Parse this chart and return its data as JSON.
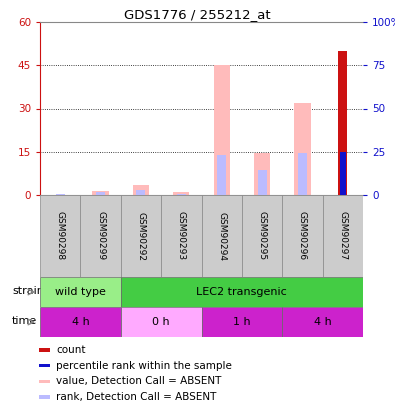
{
  "title": "GDS1776 / 255212_at",
  "samples": [
    "GSM90298",
    "GSM90299",
    "GSM90292",
    "GSM90293",
    "GSM90294",
    "GSM90295",
    "GSM90296",
    "GSM90297"
  ],
  "count_values": [
    0,
    0,
    0,
    0,
    0,
    0,
    0,
    50
  ],
  "rank_values": [
    0,
    0,
    0,
    0,
    0,
    0,
    0,
    25
  ],
  "pink_bar_values": [
    0,
    1.5,
    3.5,
    1.2,
    45,
    14.5,
    32,
    0
  ],
  "blue_bar_values": [
    0.4,
    0.9,
    1.6,
    0.5,
    14,
    8.5,
    14.5,
    0
  ],
  "left_ylim": [
    0,
    60
  ],
  "right_ylim": [
    0,
    100
  ],
  "left_yticks": [
    0,
    15,
    30,
    45,
    60
  ],
  "right_yticks": [
    0,
    25,
    50,
    75,
    100
  ],
  "right_yticklabels": [
    "0",
    "25",
    "50",
    "75",
    "100%"
  ],
  "strain_labels": [
    {
      "label": "wild type",
      "start": 0,
      "end": 2,
      "color": "#99ee88"
    },
    {
      "label": "LEC2 transgenic",
      "start": 2,
      "end": 8,
      "color": "#44cc44"
    }
  ],
  "time_labels": [
    {
      "label": "4 h",
      "start": 0,
      "end": 2,
      "color": "#cc22cc"
    },
    {
      "label": "0 h",
      "start": 2,
      "end": 4,
      "color": "#ffaaff"
    },
    {
      "label": "1 h",
      "start": 4,
      "end": 6,
      "color": "#cc22cc"
    },
    {
      "label": "4 h",
      "start": 6,
      "end": 8,
      "color": "#cc22cc"
    }
  ],
  "bar_color_red": "#cc1111",
  "bar_color_blue": "#1111cc",
  "bar_color_pink": "#ffbbbb",
  "bar_color_lightblue": "#bbbbff",
  "left_tick_color": "#cc1111",
  "right_tick_color": "#1111cc",
  "sample_bg": "#cccccc",
  "legend_items": [
    {
      "color": "#cc1111",
      "label": "count"
    },
    {
      "color": "#1111cc",
      "label": "percentile rank within the sample"
    },
    {
      "color": "#ffbbbb",
      "label": "value, Detection Call = ABSENT"
    },
    {
      "color": "#bbbbff",
      "label": "rank, Detection Call = ABSENT"
    }
  ]
}
